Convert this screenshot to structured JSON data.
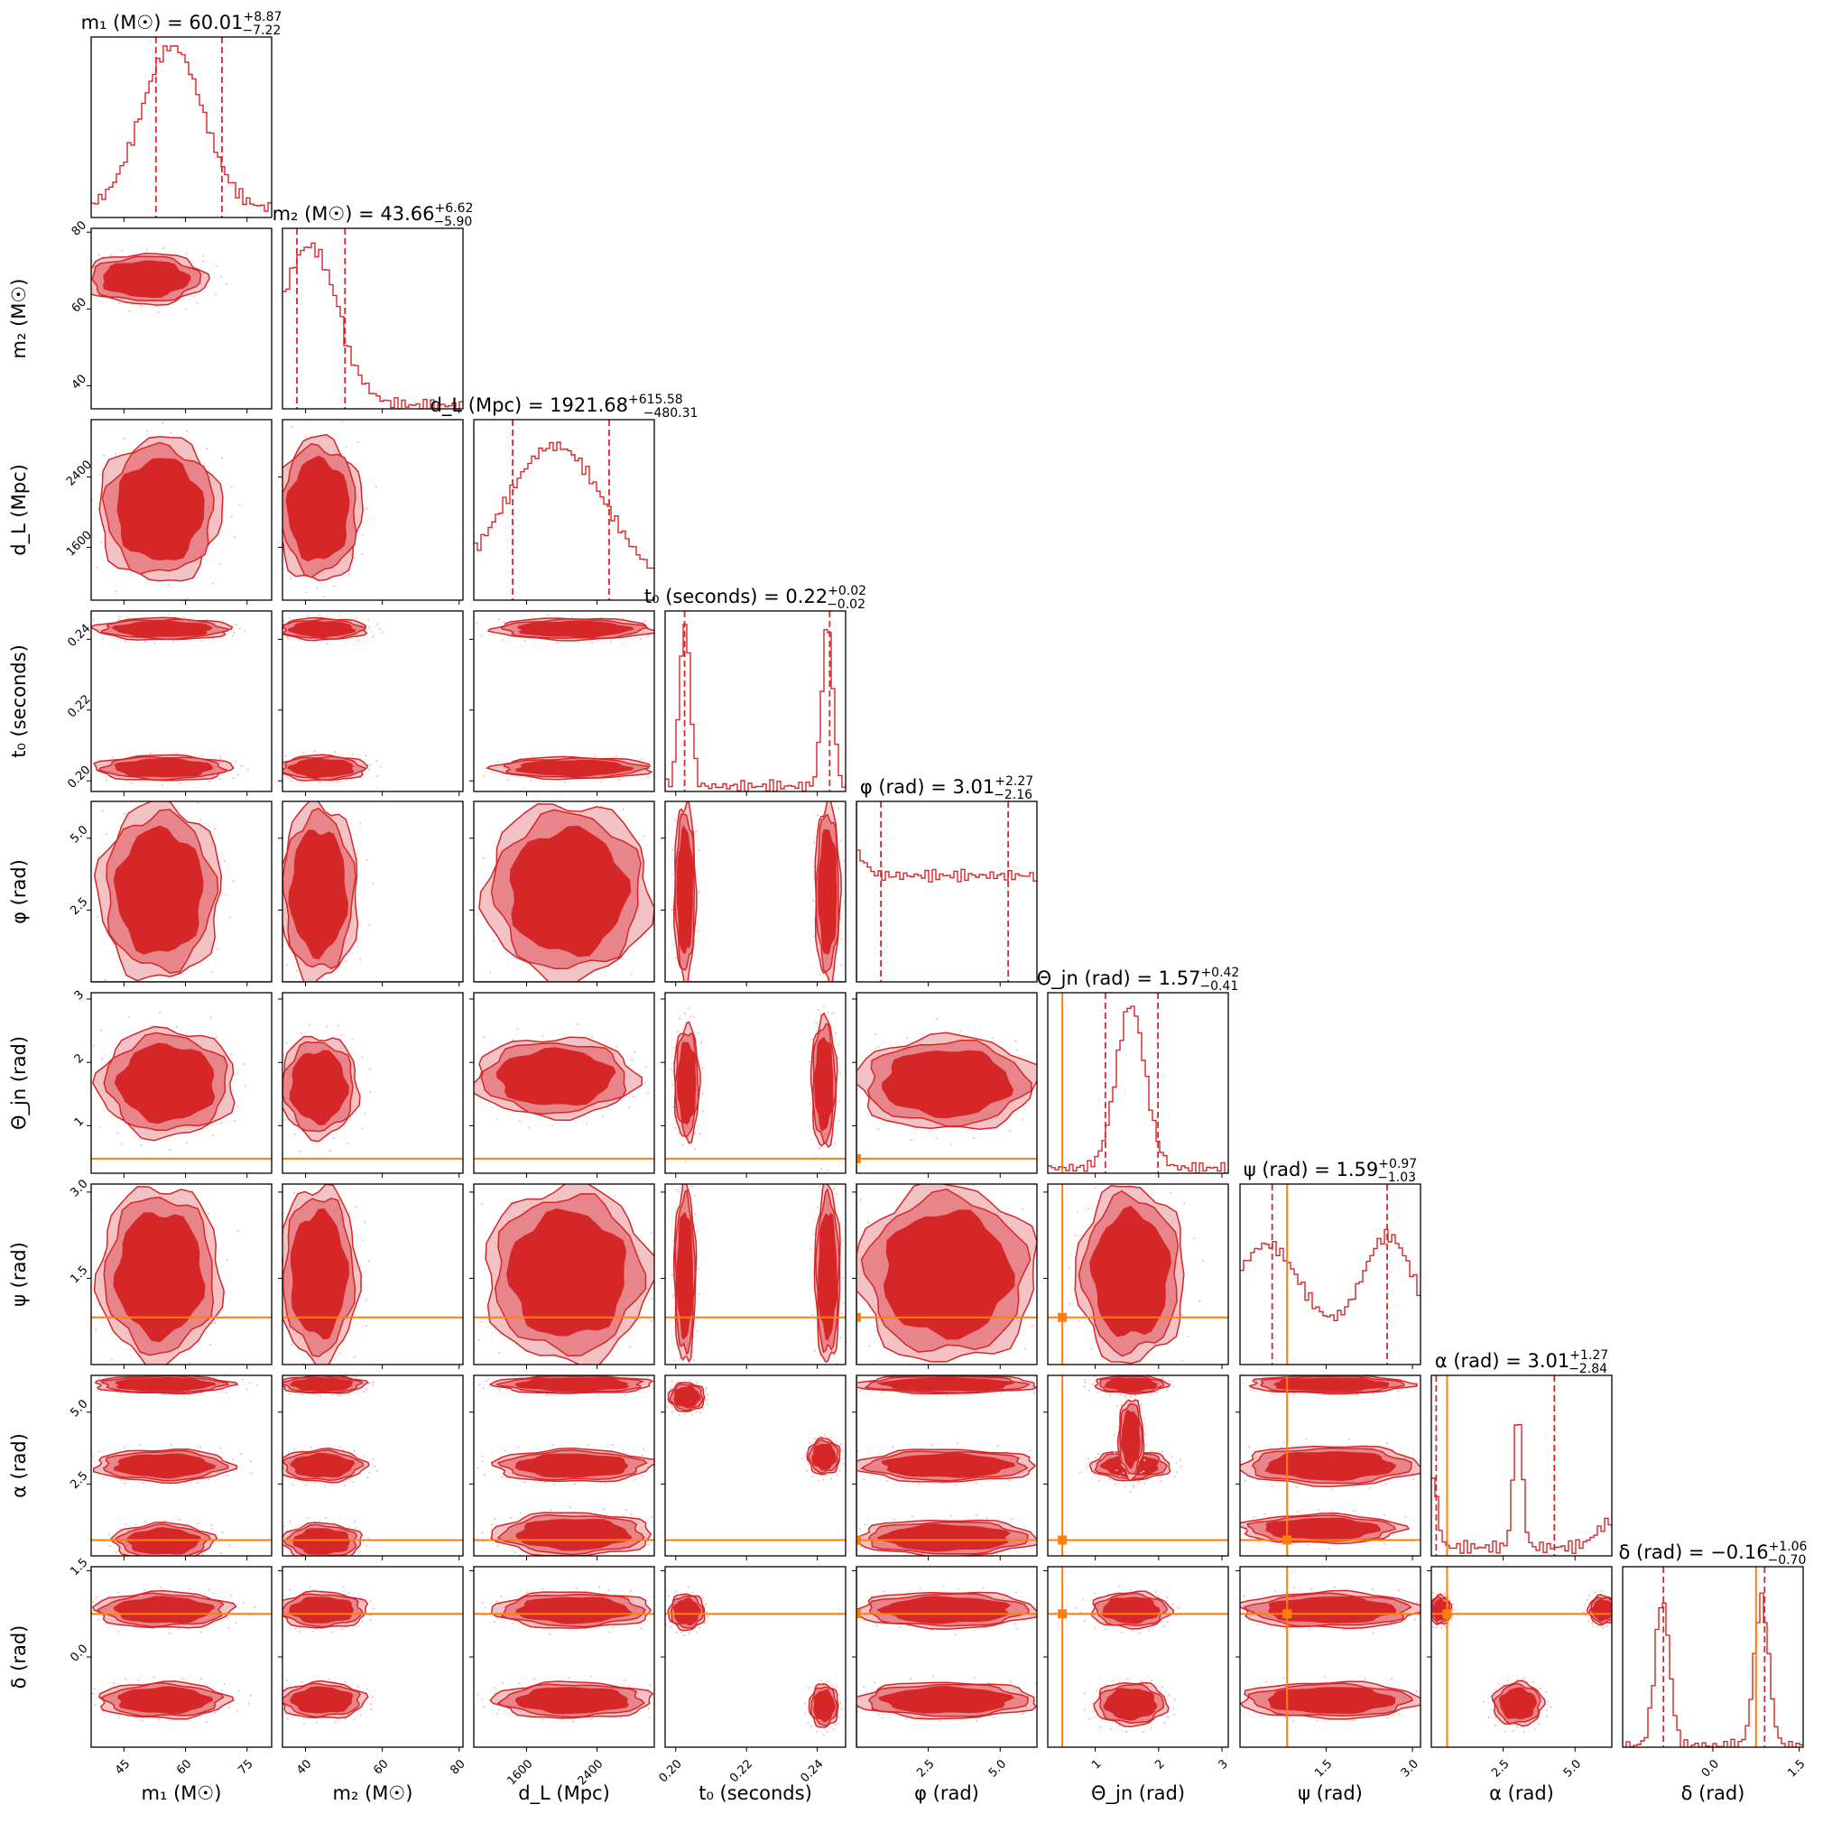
{
  "chart_data": {
    "type": "corner",
    "parameters": [
      {
        "label": "m₁ (M☉)",
        "range": [
          37,
          81
        ],
        "ticks": [
          45,
          60,
          75
        ],
        "truth": null,
        "title": {
          "name": "m₁ (M☉)",
          "median": "60.01",
          "plus": "+8.87",
          "minus": "−7.22"
        },
        "quantiles": [
          52.79,
          68.88
        ],
        "hist": "peak"
      },
      {
        "label": "m₂ (M☉)",
        "range": [
          34,
          81
        ],
        "ticks": [
          40,
          60,
          80
        ],
        "truth": null,
        "title": {
          "name": "m₂ (M☉)",
          "median": "43.66",
          "plus": "+6.62",
          "minus": "−5.90"
        },
        "quantiles": [
          37.76,
          50.28
        ],
        "hist": "skew"
      },
      {
        "label": "d_L (Mpc)",
        "range": [
          1000,
          3050
        ],
        "ticks": [
          1600,
          2400
        ],
        "truth": null,
        "title": {
          "name": "d_L (Mpc)",
          "median": "1921.68",
          "plus": "+615.58",
          "minus": "−480.31"
        },
        "quantiles": [
          1441.37,
          2537.26
        ],
        "hist": "broad"
      },
      {
        "label": "t₀ (seconds)",
        "range": [
          0.197,
          0.248
        ],
        "ticks": [
          0.2,
          0.22,
          0.24
        ],
        "truth": null,
        "title": {
          "name": "t₀ (seconds)",
          "median": "0.22",
          "plus": "+0.02",
          "minus": "−0.02"
        },
        "quantiles": [
          0.2025,
          0.2435
        ],
        "hist": "bimodal-edges"
      },
      {
        "label": "φ (rad)",
        "range": [
          0,
          6.28
        ],
        "ticks": [
          2.5,
          5.0
        ],
        "truth": 0,
        "title": {
          "name": "φ (rad)",
          "median": "3.01",
          "plus": "+2.27",
          "minus": "−2.16"
        },
        "quantiles": [
          0.85,
          5.28
        ],
        "hist": "flat"
      },
      {
        "label": "Θ_jn (rad)",
        "range": [
          0.25,
          3.1
        ],
        "ticks": [
          1,
          2,
          3
        ],
        "truth": 0.48,
        "title": {
          "name": "Θ_jn (rad)",
          "median": "1.57",
          "plus": "+0.42",
          "minus": "−0.41"
        },
        "quantiles": [
          1.16,
          1.99
        ],
        "hist": "peak-narrow"
      },
      {
        "label": "ψ (rad)",
        "range": [
          0,
          3.14
        ],
        "ticks": [
          1.5,
          3.0
        ],
        "truth": 0.82,
        "title": {
          "name": "ψ (rad)",
          "median": "1.59",
          "plus": "+0.97",
          "minus": "−1.03"
        },
        "quantiles": [
          0.56,
          2.56
        ],
        "hist": "double"
      },
      {
        "label": "α (rad)",
        "range": [
          0,
          6.28
        ],
        "ticks": [
          2.5,
          5.0
        ],
        "truth": 0.55,
        "title": {
          "name": "α (rad)",
          "median": "3.01",
          "plus": "+1.27",
          "minus": "−2.84"
        },
        "quantiles": [
          0.17,
          4.28
        ],
        "hist": "alpha"
      },
      {
        "label": "δ (rad)",
        "range": [
          -1.57,
          1.57
        ],
        "ticks": [
          0.0,
          1.5
        ],
        "truth": 0.75,
        "title": {
          "name": "δ (rad)",
          "median": "−0.16",
          "plus": "+1.06",
          "minus": "−0.70"
        },
        "quantiles": [
          -0.86,
          0.9
        ],
        "hist": "delta"
      }
    ],
    "tick_labels": {
      "0": [
        "45",
        "60",
        "75"
      ],
      "1": [
        "40",
        "60",
        "80"
      ],
      "2": [
        "1600",
        "2400"
      ],
      "3": [
        "0.20",
        "0.22",
        "0.24"
      ],
      "4": [
        "2.5",
        "5.0"
      ],
      "5": [
        "1",
        "2",
        "3"
      ],
      "6": [
        "1.5",
        "3.0"
      ],
      "7": [
        "2.5",
        "5.0"
      ],
      "8": [
        "0.0",
        "1.5"
      ]
    },
    "contour_levels": [
      "1σ",
      "2σ",
      "3σ"
    ],
    "colors": {
      "posterior": "#d62728",
      "posterior_mid": "#e8858a",
      "posterior_light": "#f3c2c5",
      "truth": "#ff7f0e",
      "axis": "#000000"
    }
  }
}
